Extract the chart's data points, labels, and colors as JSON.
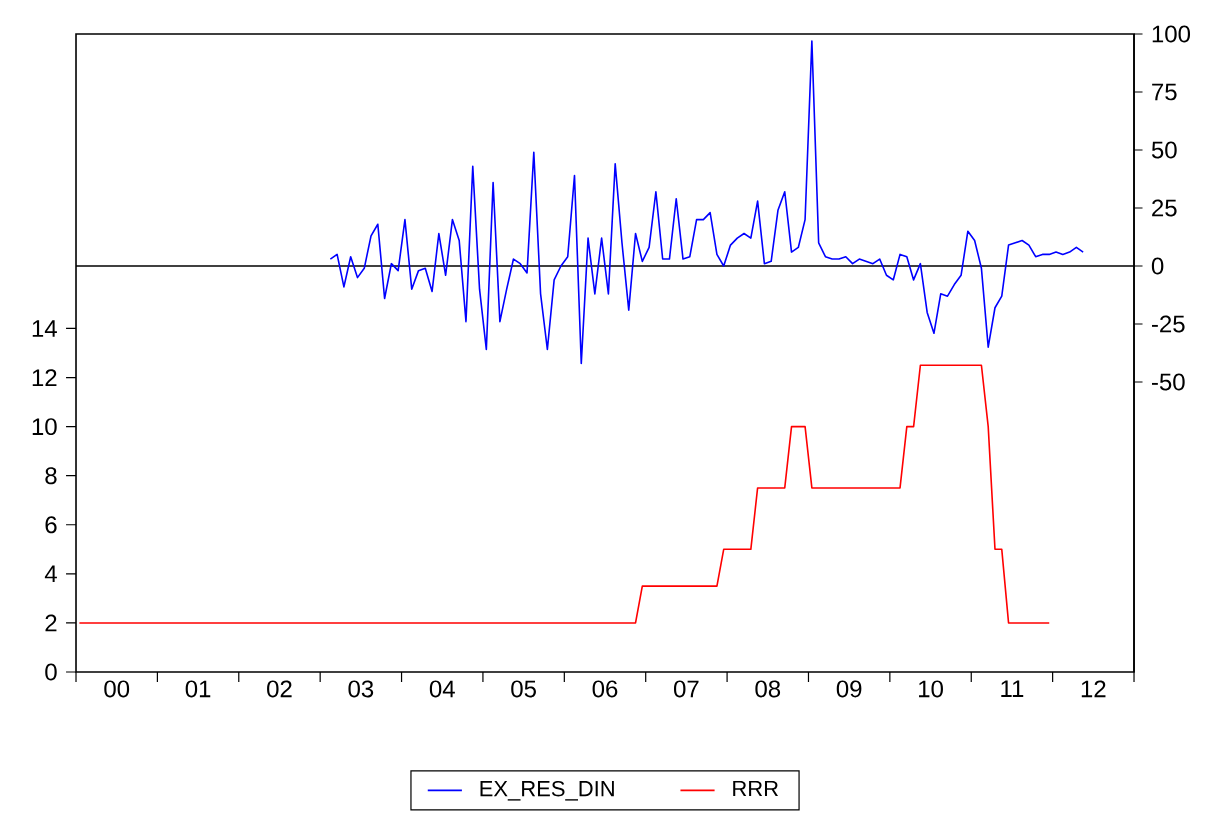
{
  "chart_data": {
    "type": "line",
    "xlim": [
      "2000-01-01",
      "2013-01-01"
    ],
    "xticks": [
      {
        "value": "2000-01-01",
        "label": null
      },
      {
        "value": "2000-07-01",
        "label": "00"
      },
      {
        "value": "2001-01-01",
        "label": null
      },
      {
        "value": "2001-07-01",
        "label": "01"
      },
      {
        "value": "2002-01-01",
        "label": null
      },
      {
        "value": "2002-07-01",
        "label": "02"
      },
      {
        "value": "2003-01-01",
        "label": null
      },
      {
        "value": "2003-07-01",
        "label": "03"
      },
      {
        "value": "2004-01-01",
        "label": null
      },
      {
        "value": "2004-07-01",
        "label": "04"
      },
      {
        "value": "2005-01-01",
        "label": null
      },
      {
        "value": "2005-07-01",
        "label": "05"
      },
      {
        "value": "2006-01-01",
        "label": null
      },
      {
        "value": "2006-07-01",
        "label": "06"
      },
      {
        "value": "2007-01-01",
        "label": null
      },
      {
        "value": "2007-07-01",
        "label": "07"
      },
      {
        "value": "2008-01-01",
        "label": null
      },
      {
        "value": "2008-07-01",
        "label": "08"
      },
      {
        "value": "2009-01-01",
        "label": null
      },
      {
        "value": "2009-07-01",
        "label": "09"
      },
      {
        "value": "2010-01-01",
        "label": null
      },
      {
        "value": "2010-07-01",
        "label": "10"
      },
      {
        "value": "2011-01-01",
        "label": null
      },
      {
        "value": "2011-07-01",
        "label": "11"
      },
      {
        "value": "2012-01-01",
        "label": null
      },
      {
        "value": "2012-07-01",
        "label": "12"
      },
      {
        "value": "2013-01-01",
        "label": null
      }
    ],
    "ylim": [
      0,
      26
    ],
    "yticks": [
      0,
      2,
      4,
      6,
      8,
      10,
      12,
      14
    ],
    "y2lim": [
      -175,
      100
    ],
    "y2ticks": [
      -50,
      -25,
      0,
      25,
      50,
      75,
      100
    ],
    "ref_lines": [
      {
        "axis": "y2",
        "value": 0,
        "color": "#000000"
      }
    ],
    "legend": "bottom",
    "series": [
      {
        "name": "EX_RES_DIN",
        "color": "#0000ff",
        "axis": "y2",
        "x": [
          "2003-02",
          "2003-03",
          "2003-04",
          "2003-05",
          "2003-06",
          "2003-07",
          "2003-08",
          "2003-09",
          "2003-10",
          "2003-11",
          "2003-12",
          "2004-01",
          "2004-02",
          "2004-03",
          "2004-04",
          "2004-05",
          "2004-06",
          "2004-07",
          "2004-08",
          "2004-09",
          "2004-10",
          "2004-11",
          "2004-12",
          "2005-01",
          "2005-02",
          "2005-03",
          "2005-04",
          "2005-05",
          "2005-06",
          "2005-07",
          "2005-08",
          "2005-09",
          "2005-10",
          "2005-11",
          "2005-12",
          "2006-01",
          "2006-02",
          "2006-03",
          "2006-04",
          "2006-05",
          "2006-06",
          "2006-07",
          "2006-08",
          "2006-09",
          "2006-10",
          "2006-11",
          "2006-12",
          "2007-01",
          "2007-02",
          "2007-03",
          "2007-04",
          "2007-05",
          "2007-06",
          "2007-07",
          "2007-08",
          "2007-09",
          "2007-10",
          "2007-11",
          "2007-12",
          "2008-01",
          "2008-02",
          "2008-03",
          "2008-04",
          "2008-05",
          "2008-06",
          "2008-07",
          "2008-08",
          "2008-09",
          "2008-10",
          "2008-11",
          "2008-12",
          "2009-01",
          "2009-02",
          "2009-03",
          "2009-04",
          "2009-05",
          "2009-06",
          "2009-07",
          "2009-08",
          "2009-09",
          "2009-10",
          "2009-11",
          "2009-12",
          "2010-01",
          "2010-02",
          "2010-03",
          "2010-04",
          "2010-05",
          "2010-06",
          "2010-07",
          "2010-08",
          "2010-09",
          "2010-10",
          "2010-11",
          "2010-12",
          "2011-01",
          "2011-02",
          "2011-03",
          "2011-04",
          "2011-05",
          "2011-06",
          "2011-07",
          "2011-08",
          "2011-09",
          "2011-10",
          "2011-11",
          "2011-12",
          "2012-01",
          "2012-02",
          "2012-03",
          "2012-04",
          "2012-05"
        ],
        "values": [
          3,
          5,
          -9,
          4,
          -5,
          -1,
          13,
          18,
          -14,
          1,
          -2,
          20,
          -10,
          -2,
          -1,
          -11,
          14,
          -4,
          20,
          11,
          -24,
          43,
          -10,
          -36,
          36,
          -24,
          -10,
          3,
          1,
          -3,
          49,
          -12,
          -36,
          -6,
          0,
          4,
          39,
          -42,
          12,
          -12,
          12,
          -12,
          44,
          10,
          -19,
          14,
          2,
          8,
          32,
          3,
          3,
          29,
          3,
          4,
          20,
          20,
          23,
          5,
          0,
          9,
          12,
          14,
          12,
          28,
          1,
          2,
          24,
          32,
          6,
          8,
          20,
          97,
          10,
          4,
          3,
          3,
          4,
          1,
          3,
          2,
          1,
          3,
          -4,
          -6,
          5,
          4,
          -6,
          1,
          -20,
          -29,
          -12,
          -13,
          -8,
          -4,
          15,
          11,
          -1,
          -35,
          -18,
          -13,
          9,
          10,
          11,
          9,
          4,
          5,
          5,
          6,
          5,
          6,
          8,
          6
        ]
      },
      {
        "name": "RRR",
        "color": "#ff0000",
        "x": [
          "2000-01",
          "2006-11",
          "2006-12",
          "2007-11",
          "2007-12",
          "2008-04",
          "2008-05",
          "2008-09",
          "2008-10",
          "2008-12",
          "2009-01",
          "2010-02",
          "2010-03",
          "2010-04",
          "2010-05",
          "2011-02",
          "2011-03",
          "2011-04",
          "2011-05",
          "2011-06",
          "2011-12"
        ],
        "values": [
          2,
          2,
          3.5,
          3.5,
          5,
          5,
          7.5,
          7.5,
          10,
          10,
          7.5,
          7.5,
          10,
          10,
          12.5,
          12.5,
          10,
          5,
          5,
          2,
          2
        ]
      }
    ]
  }
}
